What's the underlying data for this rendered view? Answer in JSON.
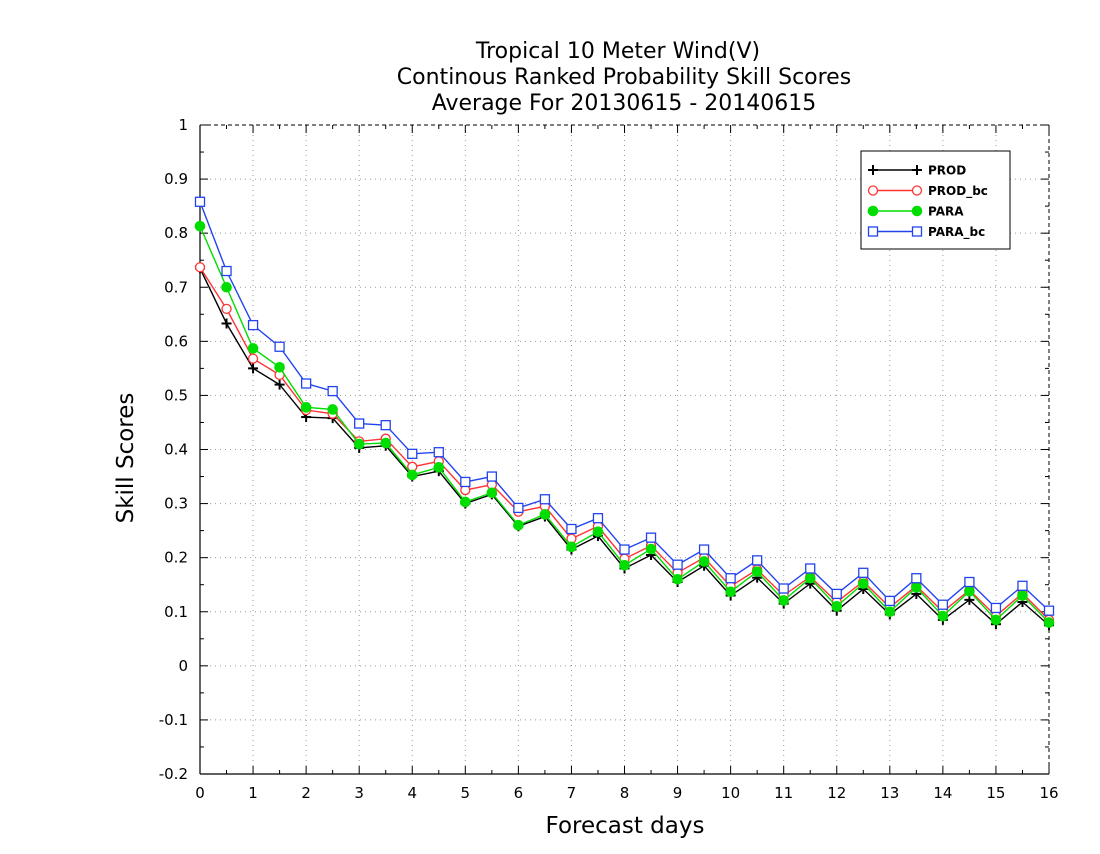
{
  "chart_data": {
    "type": "line",
    "title": [
      "Tropical 10 Meter Wind(V)",
      "Continous Ranked Probability Skill Scores",
      "Average For 20130615 - 20140615"
    ],
    "xlabel": "Forecast days",
    "ylabel": "Skill Scores",
    "xlim": [
      0,
      16
    ],
    "ylim": [
      -0.2,
      1
    ],
    "xticks": [
      "0",
      "1",
      "2",
      "3",
      "4",
      "5",
      "6",
      "7",
      "8",
      "9",
      "10",
      "11",
      "12",
      "13",
      "14",
      "15",
      "16"
    ],
    "yticks": [
      "-0.2",
      "-0.1",
      "0",
      "0.1",
      "0.2",
      "0.3",
      "0.4",
      "0.5",
      "0.6",
      "0.7",
      "0.8",
      "0.9",
      "1"
    ],
    "grid": true,
    "legend_position": "top-right",
    "x": [
      0,
      0.5,
      1,
      1.5,
      2,
      2.5,
      3,
      3.5,
      4,
      4.5,
      5,
      5.5,
      6,
      6.5,
      7,
      7.5,
      8,
      8.5,
      9,
      9.5,
      10,
      10.5,
      11,
      11.5,
      12,
      12.5,
      13,
      13.5,
      14,
      14.5,
      15,
      15.5,
      16
    ],
    "series": [
      {
        "name": "PROD",
        "color": "#000000",
        "marker": "plus",
        "values": [
          0.735,
          0.633,
          0.55,
          0.52,
          0.46,
          0.458,
          0.403,
          0.407,
          0.35,
          0.36,
          0.3,
          0.317,
          0.258,
          0.276,
          0.215,
          0.24,
          0.18,
          0.205,
          0.155,
          0.185,
          0.13,
          0.163,
          0.115,
          0.152,
          0.102,
          0.142,
          0.095,
          0.133,
          0.085,
          0.122,
          0.077,
          0.118,
          0.075
        ]
      },
      {
        "name": "PROD_bc",
        "color": "#ff3333",
        "marker": "open-circle",
        "values": [
          0.737,
          0.66,
          0.568,
          0.538,
          0.473,
          0.466,
          0.415,
          0.42,
          0.368,
          0.378,
          0.325,
          0.335,
          0.285,
          0.295,
          0.235,
          0.258,
          0.198,
          0.222,
          0.172,
          0.2,
          0.147,
          0.178,
          0.13,
          0.165,
          0.118,
          0.156,
          0.108,
          0.148,
          0.1,
          0.14,
          0.092,
          0.134,
          0.085
        ]
      },
      {
        "name": "PARA",
        "color": "#00dd00",
        "marker": "filled-circle",
        "values": [
          0.813,
          0.7,
          0.587,
          0.552,
          0.478,
          0.474,
          0.41,
          0.412,
          0.353,
          0.367,
          0.303,
          0.32,
          0.26,
          0.28,
          0.22,
          0.248,
          0.186,
          0.216,
          0.16,
          0.193,
          0.137,
          0.174,
          0.121,
          0.162,
          0.11,
          0.152,
          0.1,
          0.145,
          0.092,
          0.138,
          0.085,
          0.13,
          0.08
        ]
      },
      {
        "name": "PARA_bc",
        "color": "#2244ee",
        "marker": "open-square",
        "values": [
          0.858,
          0.73,
          0.63,
          0.59,
          0.522,
          0.508,
          0.448,
          0.445,
          0.392,
          0.395,
          0.34,
          0.35,
          0.292,
          0.308,
          0.253,
          0.273,
          0.215,
          0.237,
          0.187,
          0.215,
          0.162,
          0.195,
          0.143,
          0.18,
          0.133,
          0.172,
          0.12,
          0.162,
          0.113,
          0.155,
          0.107,
          0.148,
          0.102
        ]
      }
    ]
  }
}
